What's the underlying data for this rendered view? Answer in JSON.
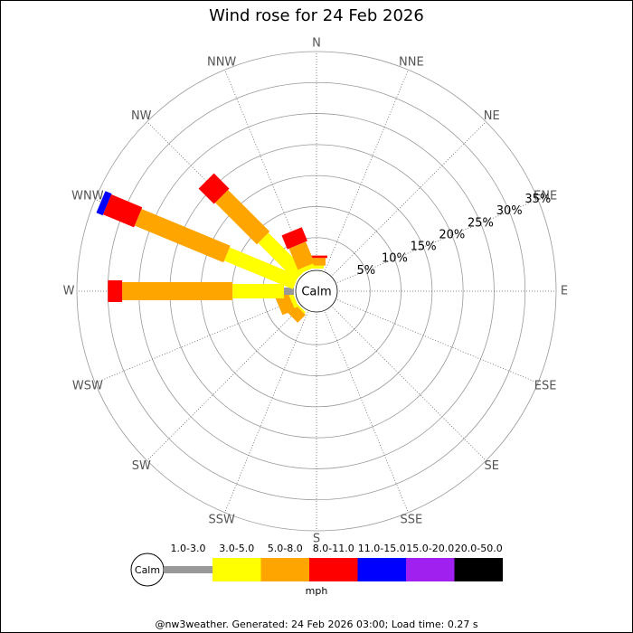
{
  "chart_data": {
    "type": "windrose",
    "title": "Wind rose for 24 Feb 2026",
    "directions": [
      "N",
      "NNE",
      "NE",
      "ENE",
      "E",
      "ESE",
      "SE",
      "SSE",
      "S",
      "SSW",
      "SW",
      "WSW",
      "W",
      "WNW",
      "NW",
      "NNW"
    ],
    "calm_label": "Calm",
    "rlim": [
      0,
      35
    ],
    "rticks": [
      {
        "value": 5,
        "label": "5%"
      },
      {
        "value": 10,
        "label": "10%"
      },
      {
        "value": 15,
        "label": "15%"
      },
      {
        "value": 20,
        "label": "20%"
      },
      {
        "value": 25,
        "label": "25%"
      },
      {
        "value": 30,
        "label": "30%"
      },
      {
        "value": 35,
        "label": "35%"
      }
    ],
    "grid": true,
    "series": [
      {
        "name": "1.0-3.0",
        "color": "#999999",
        "values": [
          0,
          0,
          0,
          0,
          0,
          0,
          0,
          0,
          0,
          0,
          0,
          0,
          1.6,
          0,
          0,
          0
        ]
      },
      {
        "name": "3.0-5.0",
        "color": "#ffff00",
        "values": [
          0.5,
          0,
          0,
          0,
          0,
          0,
          0,
          0,
          0,
          0,
          0.3,
          0.7,
          8.3,
          12,
          8.5,
          0.7
        ]
      },
      {
        "name": "5.0-8.0",
        "color": "#ffa500",
        "values": [
          1.2,
          0,
          0,
          0,
          0,
          0,
          0,
          0,
          0,
          0,
          1.8,
          2.2,
          17.8,
          15.5,
          9.5,
          3.7
        ]
      },
      {
        "name": "8.0-11.0",
        "color": "#ff0000",
        "values": [
          0.4,
          0,
          0,
          0,
          0,
          0,
          0,
          0,
          0,
          0,
          0,
          0,
          2.3,
          5.4,
          3.5,
          2.4
        ]
      },
      {
        "name": "11.0-15.0",
        "color": "#0000ff",
        "values": [
          0,
          0,
          0,
          0,
          0,
          0,
          0,
          0,
          0,
          0,
          0,
          0,
          0,
          1.1,
          0,
          0
        ]
      },
      {
        "name": "15.0-20.0",
        "color": "#a020f0",
        "values": [
          0,
          0,
          0,
          0,
          0,
          0,
          0,
          0,
          0,
          0,
          0,
          0,
          0,
          0,
          0,
          0
        ]
      },
      {
        "name": "20.0-50.0",
        "color": "#000000",
        "values": [
          0,
          0,
          0,
          0,
          0,
          0,
          0,
          0,
          0,
          0,
          0,
          0,
          0,
          0,
          0,
          0
        ]
      }
    ],
    "legend_unit": "mph",
    "footer": "@nw3weather. Generated: 24 Feb 2026 03:00; Load time: 0.27 s"
  }
}
